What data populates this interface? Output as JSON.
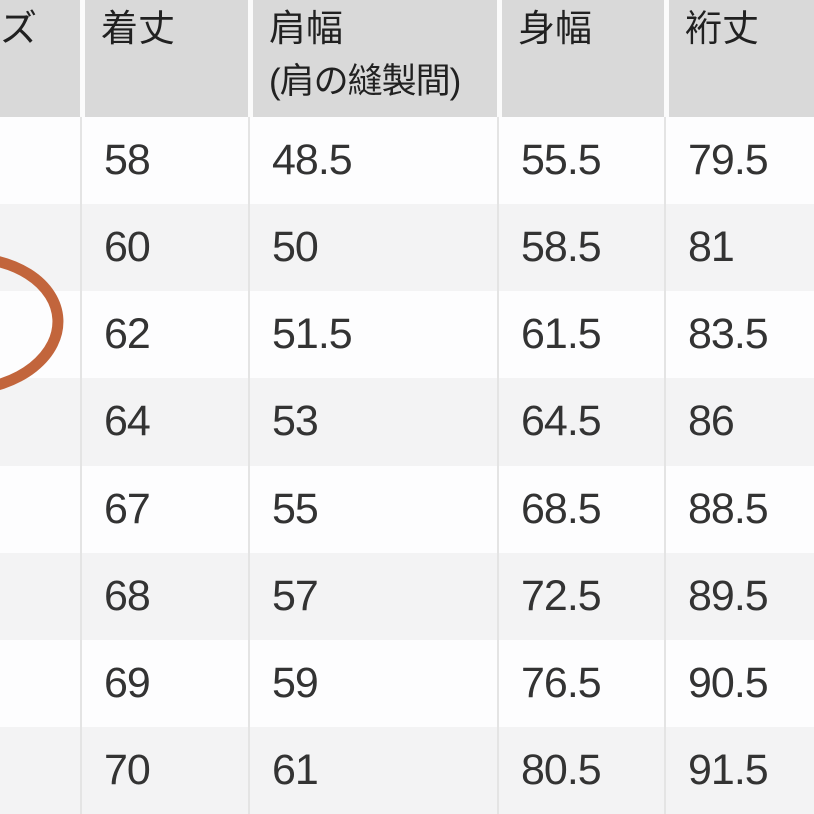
{
  "table": {
    "columns": [
      {
        "label": "ズ",
        "sublabel": ""
      },
      {
        "label": "着丈",
        "sublabel": ""
      },
      {
        "label": "肩幅",
        "sublabel": "(肩の縫製間)"
      },
      {
        "label": "身幅",
        "sublabel": ""
      },
      {
        "label": "裄丈",
        "sublabel": ""
      }
    ],
    "rows": [
      [
        "",
        "58",
        "48.5",
        "55.5",
        "79.5"
      ],
      [
        "",
        "60",
        "50",
        "58.5",
        "81"
      ],
      [
        "",
        "62",
        "51.5",
        "61.5",
        "83.5"
      ],
      [
        "",
        "64",
        "53",
        "64.5",
        "86"
      ],
      [
        "",
        "67",
        "55",
        "68.5",
        "88.5"
      ],
      [
        "",
        "68",
        "57",
        "72.5",
        "89.5"
      ],
      [
        "",
        "69",
        "59",
        "76.5",
        "90.5"
      ],
      [
        "",
        "70",
        "61",
        "80.5",
        "91.5"
      ]
    ]
  },
  "annotation": {
    "shape": "hand-drawn-circle",
    "color": "#c2653c",
    "circled_row_value": "62"
  },
  "colors": {
    "header_bg": "#d9d9d9",
    "row_bg": "#fdfdfe",
    "row_alt_bg": "#f3f3f4",
    "divider": "#e4e4e4",
    "header_divider": "#fbfbfb",
    "text": "#333333",
    "header_text": "#212121"
  }
}
